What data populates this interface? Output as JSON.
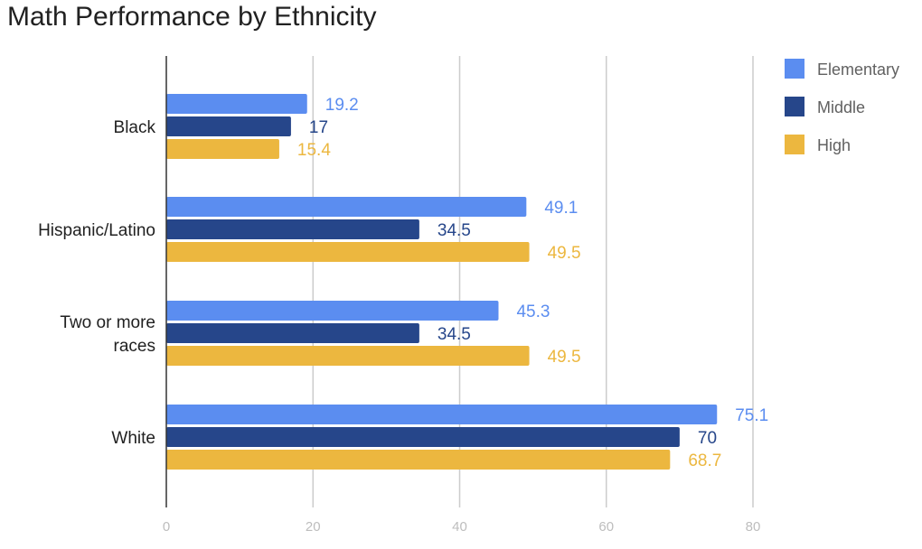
{
  "chart_data": {
    "type": "bar",
    "orientation": "horizontal",
    "title": "Math Performance by Ethnicity",
    "xlabel": "",
    "ylabel": "",
    "categories": [
      [
        "Black"
      ],
      [
        "Hispanic/Latino"
      ],
      [
        "Two or more",
        "races"
      ],
      [
        "White"
      ]
    ],
    "series": [
      {
        "name": "Elementary",
        "color": "#5b8df0",
        "values": [
          19.2,
          49.1,
          45.3,
          75.1
        ]
      },
      {
        "name": "Middle",
        "color": "#26468a",
        "values": [
          17,
          34.5,
          34.5,
          70
        ]
      },
      {
        "name": "High",
        "color": "#ecb73f",
        "values": [
          15.4,
          49.5,
          49.5,
          68.7
        ]
      }
    ],
    "xlim": [
      0,
      80
    ],
    "xticks": [
      "0",
      "20",
      "40",
      "60",
      "80"
    ],
    "grid": true,
    "legend_position": "right",
    "data_labels": true
  }
}
